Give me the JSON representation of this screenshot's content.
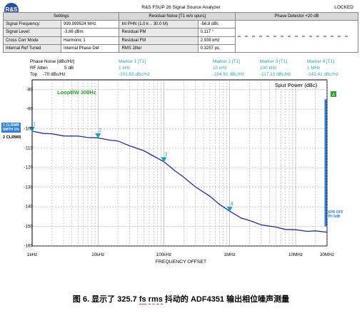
{
  "window": {
    "title": "R&S FSUP 26 Signal Source Analyzer",
    "status": "LOCKED",
    "logo_text": "R&S"
  },
  "summary": {
    "headers": [
      "Settings",
      "Residual Noise [T1 w/o spurs]",
      "Phase Detector +20 dB"
    ],
    "rows": [
      {
        "label": "Signal Frequency:",
        "value": "999.999524 MHz",
        "rlabel": "Int PHN (1.0 k .. 30.0 M)",
        "rvalue": "-56.8 dBc"
      },
      {
        "label": "Signal Level:",
        "value": "-3.86 dBm",
        "rlabel": "Residual PM",
        "rvalue": "0.117 °"
      },
      {
        "label": "Cross Corr Mode",
        "value": "Harmonic 1",
        "rlabel": "Residual FM",
        "rvalue": "2.939 kHz"
      },
      {
        "label": "Internal Ref Tuned",
        "value": "Internal Phase Det",
        "rlabel": "RMS Jitter",
        "rvalue": "0.3257 ps"
      }
    ]
  },
  "trace_info": {
    "title": "Phase Noise [dBc/Hz]",
    "rf_atten_label": "RF Atten",
    "rf_atten": "5 dB",
    "top_label": "Top",
    "top": "-70 dBc/Hz"
  },
  "markers": [
    {
      "name": "Marker 1 [T1]",
      "freq": "1 kHz",
      "value": "-101.53 dBc/Hz"
    },
    {
      "name": "Marker 2 [T1]",
      "freq": "10 kHz",
      "value": "-104.91 dBc/Hz"
    },
    {
      "name": "Marker 3 [T1]",
      "freq": "100 kHz",
      "value": "-117.13 dBc/Hz"
    },
    {
      "name": "Marker 4 [T1]",
      "freq": "1 MHz",
      "value": "-142.41 dBc/Hz"
    }
  ],
  "labels": {
    "loop_bw": "LoopBW 300Hz",
    "spur_power": "Spur Power (dBc)",
    "left_badge_1": "1 CLRWR",
    "left_badge_2": "SMTH 1%",
    "left_badge_3": "2 CLRWR",
    "right_badge_1": "SPR OFF",
    "right_badge_2": "TH 0dB",
    "x_axis": "FREQUENCY OFFSET",
    "side_marker": "A"
  },
  "colors": {
    "trace": "#1f2f9a",
    "marker": "#1aa3b0",
    "grid": "#9a9a9a",
    "spur_bar": "#2e7fd9",
    "loop_bw": "#2e9e2e"
  },
  "chart_data": {
    "type": "line",
    "xscale": "log",
    "x_ticks": [
      "1kHz",
      "10kHz",
      "100kHz",
      "1MHz",
      "10MHz",
      "30MHz"
    ],
    "y_ticks": [
      "-80",
      "-90",
      "-100",
      "-110",
      "-120",
      "-130",
      "-140",
      "-150",
      "-160"
    ],
    "ylim": [
      -160,
      -75
    ],
    "xlim_hz": [
      1000,
      30000000
    ],
    "series": [
      {
        "x_hz": [
          1000,
          1500,
          2000,
          3000,
          5000,
          7000,
          10000,
          15000,
          20000,
          30000,
          50000,
          70000,
          100000,
          150000,
          200000,
          300000,
          500000,
          700000,
          1000000,
          1500000,
          2000000,
          3000000,
          5000000,
          7000000,
          10000000,
          15000000,
          20000000,
          30000000
        ],
        "y": [
          -101.5,
          -102.2,
          -102.8,
          -103.5,
          -104.0,
          -104.3,
          -104.9,
          -105.6,
          -106.5,
          -108.5,
          -111.5,
          -113.8,
          -117.1,
          -121.5,
          -125.0,
          -129.5,
          -134.8,
          -138.5,
          -142.4,
          -145.5,
          -147.2,
          -149.0,
          -150.5,
          -151.3,
          -151.9,
          -152.3,
          -152.5,
          -152.7
        ]
      }
    ],
    "markers": [
      {
        "label": "1",
        "x_hz": 1000,
        "y": -101.53
      },
      {
        "label": "2",
        "x_hz": 10000,
        "y": -104.91
      },
      {
        "label": "3",
        "x_hz": 100000,
        "y": -117.13
      },
      {
        "label": "4",
        "x_hz": 1000000,
        "y": -142.41
      }
    ],
    "xlabel": "FREQUENCY OFFSET",
    "title": "Spur Power (dBc)"
  },
  "caption": {
    "prefix": "图 6. 显示了 325.7 ",
    "fs": "fs",
    "space": " ",
    "rms": "rms",
    "suffix": " 抖动的 ADF4351 输出相位噪声测量"
  }
}
